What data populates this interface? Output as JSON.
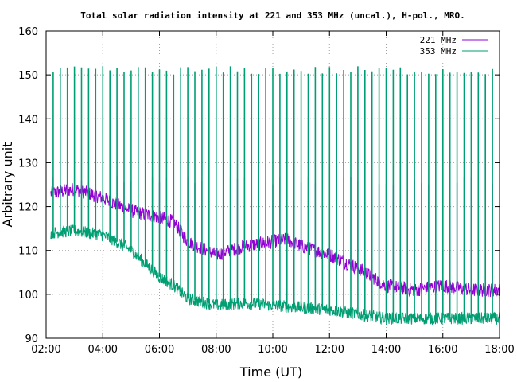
{
  "chart_data": {
    "type": "line",
    "title": "Total solar radiation intensity at 221 and 353 MHz (uncal.), H-pol., MRO.",
    "xlabel": "Time (UT)",
    "ylabel": "Arbitrary unit",
    "xlim": [
      "02:00",
      "18:00"
    ],
    "ylim": [
      90,
      160
    ],
    "xticks": [
      "02:00",
      "04:00",
      "06:00",
      "08:00",
      "10:00",
      "12:00",
      "14:00",
      "16:00",
      "18:00"
    ],
    "yticks": [
      "90",
      "100",
      "110",
      "120",
      "130",
      "140",
      "150",
      "160"
    ],
    "grid": true,
    "legend_position": "top-right",
    "series": [
      {
        "name": "221 MHz",
        "color": "#9400d3",
        "x": [
          "02:10",
          "03:00",
          "04:00",
          "05:00",
          "06:00",
          "06:30",
          "07:00",
          "08:00",
          "09:00",
          "10:00",
          "10:30",
          "11:00",
          "12:00",
          "13:00",
          "14:00",
          "15:00",
          "16:00",
          "17:00",
          "17:30",
          "18:00"
        ],
        "values": [
          123,
          124,
          122,
          119,
          117.5,
          116.5,
          112,
          109,
          111,
          112,
          112.5,
          111,
          109,
          106,
          102,
          101,
          102,
          101,
          101,
          101
        ],
        "calibration_spike_level": 126
      },
      {
        "name": "353 MHz",
        "color": "#009e73",
        "x": [
          "02:10",
          "03:00",
          "04:00",
          "04:30",
          "05:00",
          "06:00",
          "06:30",
          "07:00",
          "08:00",
          "09:00",
          "10:00",
          "11:00",
          "12:00",
          "13:00",
          "14:00",
          "15:00",
          "16:00",
          "17:00",
          "18:00"
        ],
        "values": [
          114,
          114.5,
          113.5,
          112,
          110,
          104,
          102,
          99,
          97.5,
          98,
          97.5,
          97,
          96.5,
          95.5,
          94.5,
          94.5,
          94.5,
          94.5,
          94.5
        ],
        "calibration_spike_level": 151
      }
    ]
  }
}
